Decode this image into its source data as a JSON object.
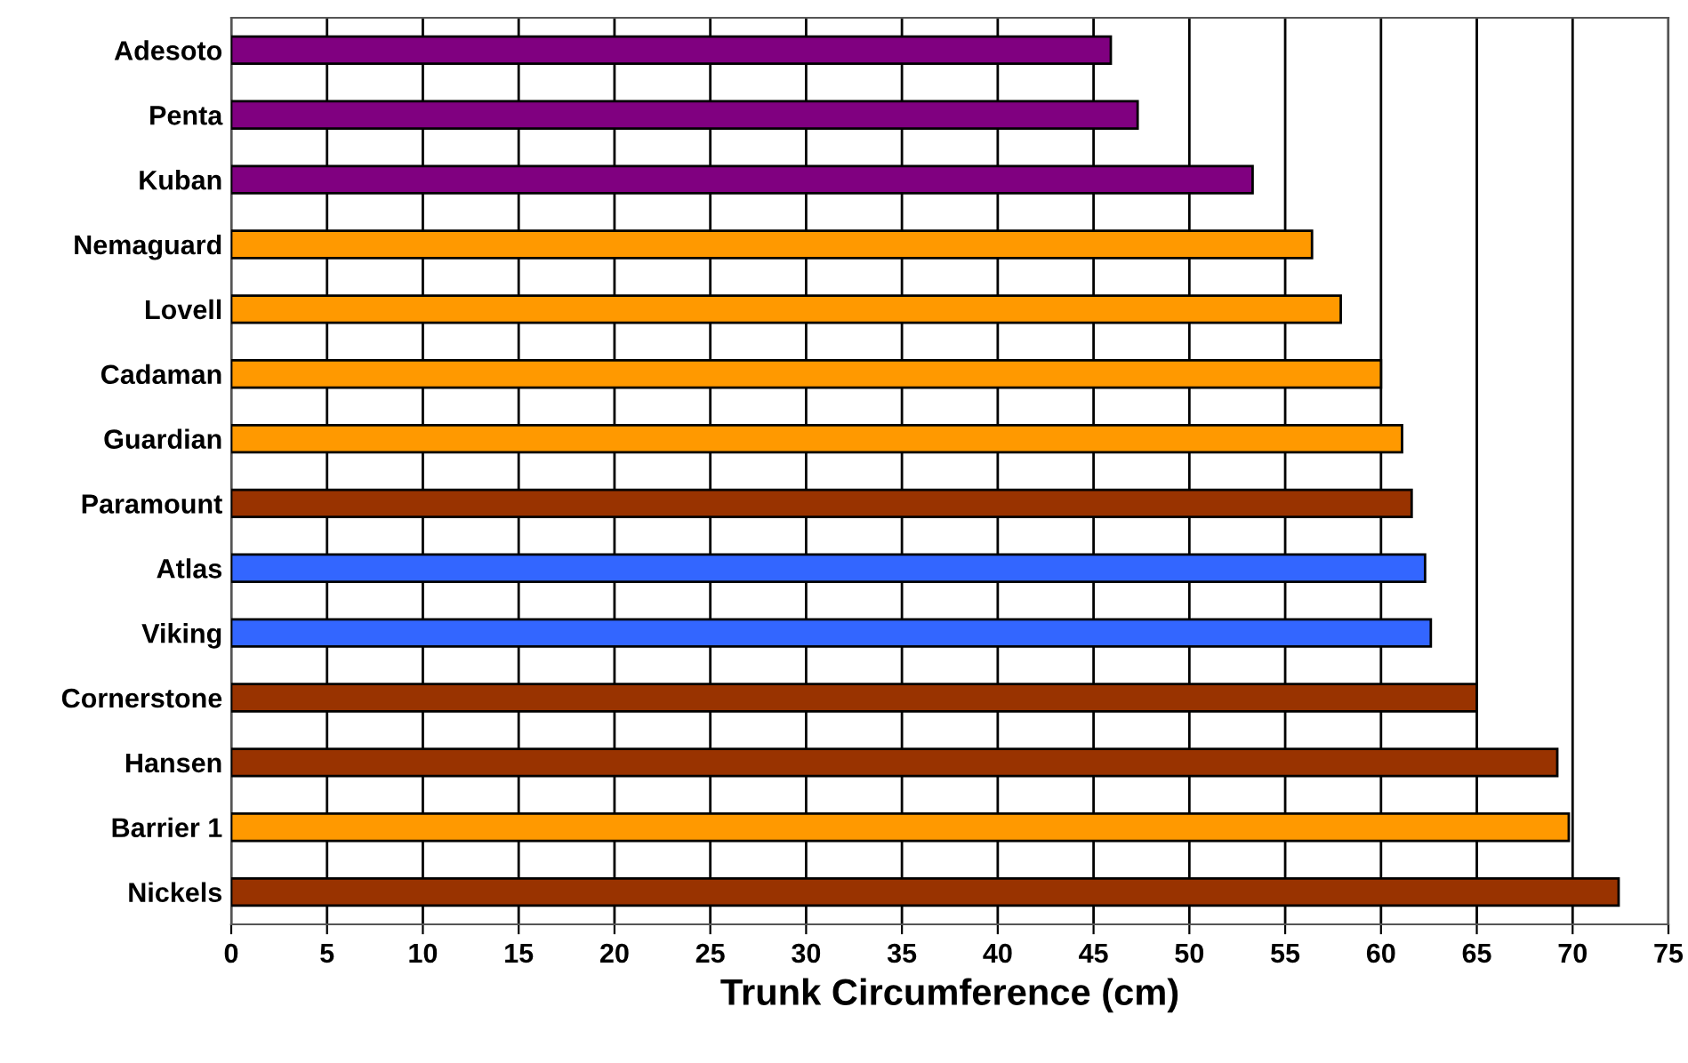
{
  "chart_data": {
    "type": "bar",
    "orientation": "horizontal",
    "xlabel": "Trunk Circumference (cm)",
    "categories": [
      "Adesoto",
      "Penta",
      "Kuban",
      "Nemaguard",
      "Lovell",
      "Cadaman",
      "Guardian",
      "Paramount",
      "Atlas",
      "Viking",
      "Cornerstone",
      "Hansen",
      "Barrier 1",
      "Nickels"
    ],
    "values": [
      45.9,
      47.3,
      53.3,
      56.4,
      57.9,
      60.0,
      61.1,
      61.6,
      62.3,
      62.6,
      65.0,
      69.2,
      69.8,
      72.4
    ],
    "colors": [
      "#800080",
      "#800080",
      "#800080",
      "#ff9900",
      "#ff9900",
      "#ff9900",
      "#ff9900",
      "#993300",
      "#3366ff",
      "#3366ff",
      "#993300",
      "#993300",
      "#ff9900",
      "#993300"
    ],
    "xlim": [
      0,
      75
    ],
    "xticks": [
      0,
      5,
      10,
      15,
      20,
      25,
      30,
      35,
      40,
      45,
      50,
      55,
      60,
      65,
      70,
      75
    ],
    "grid": "x"
  }
}
